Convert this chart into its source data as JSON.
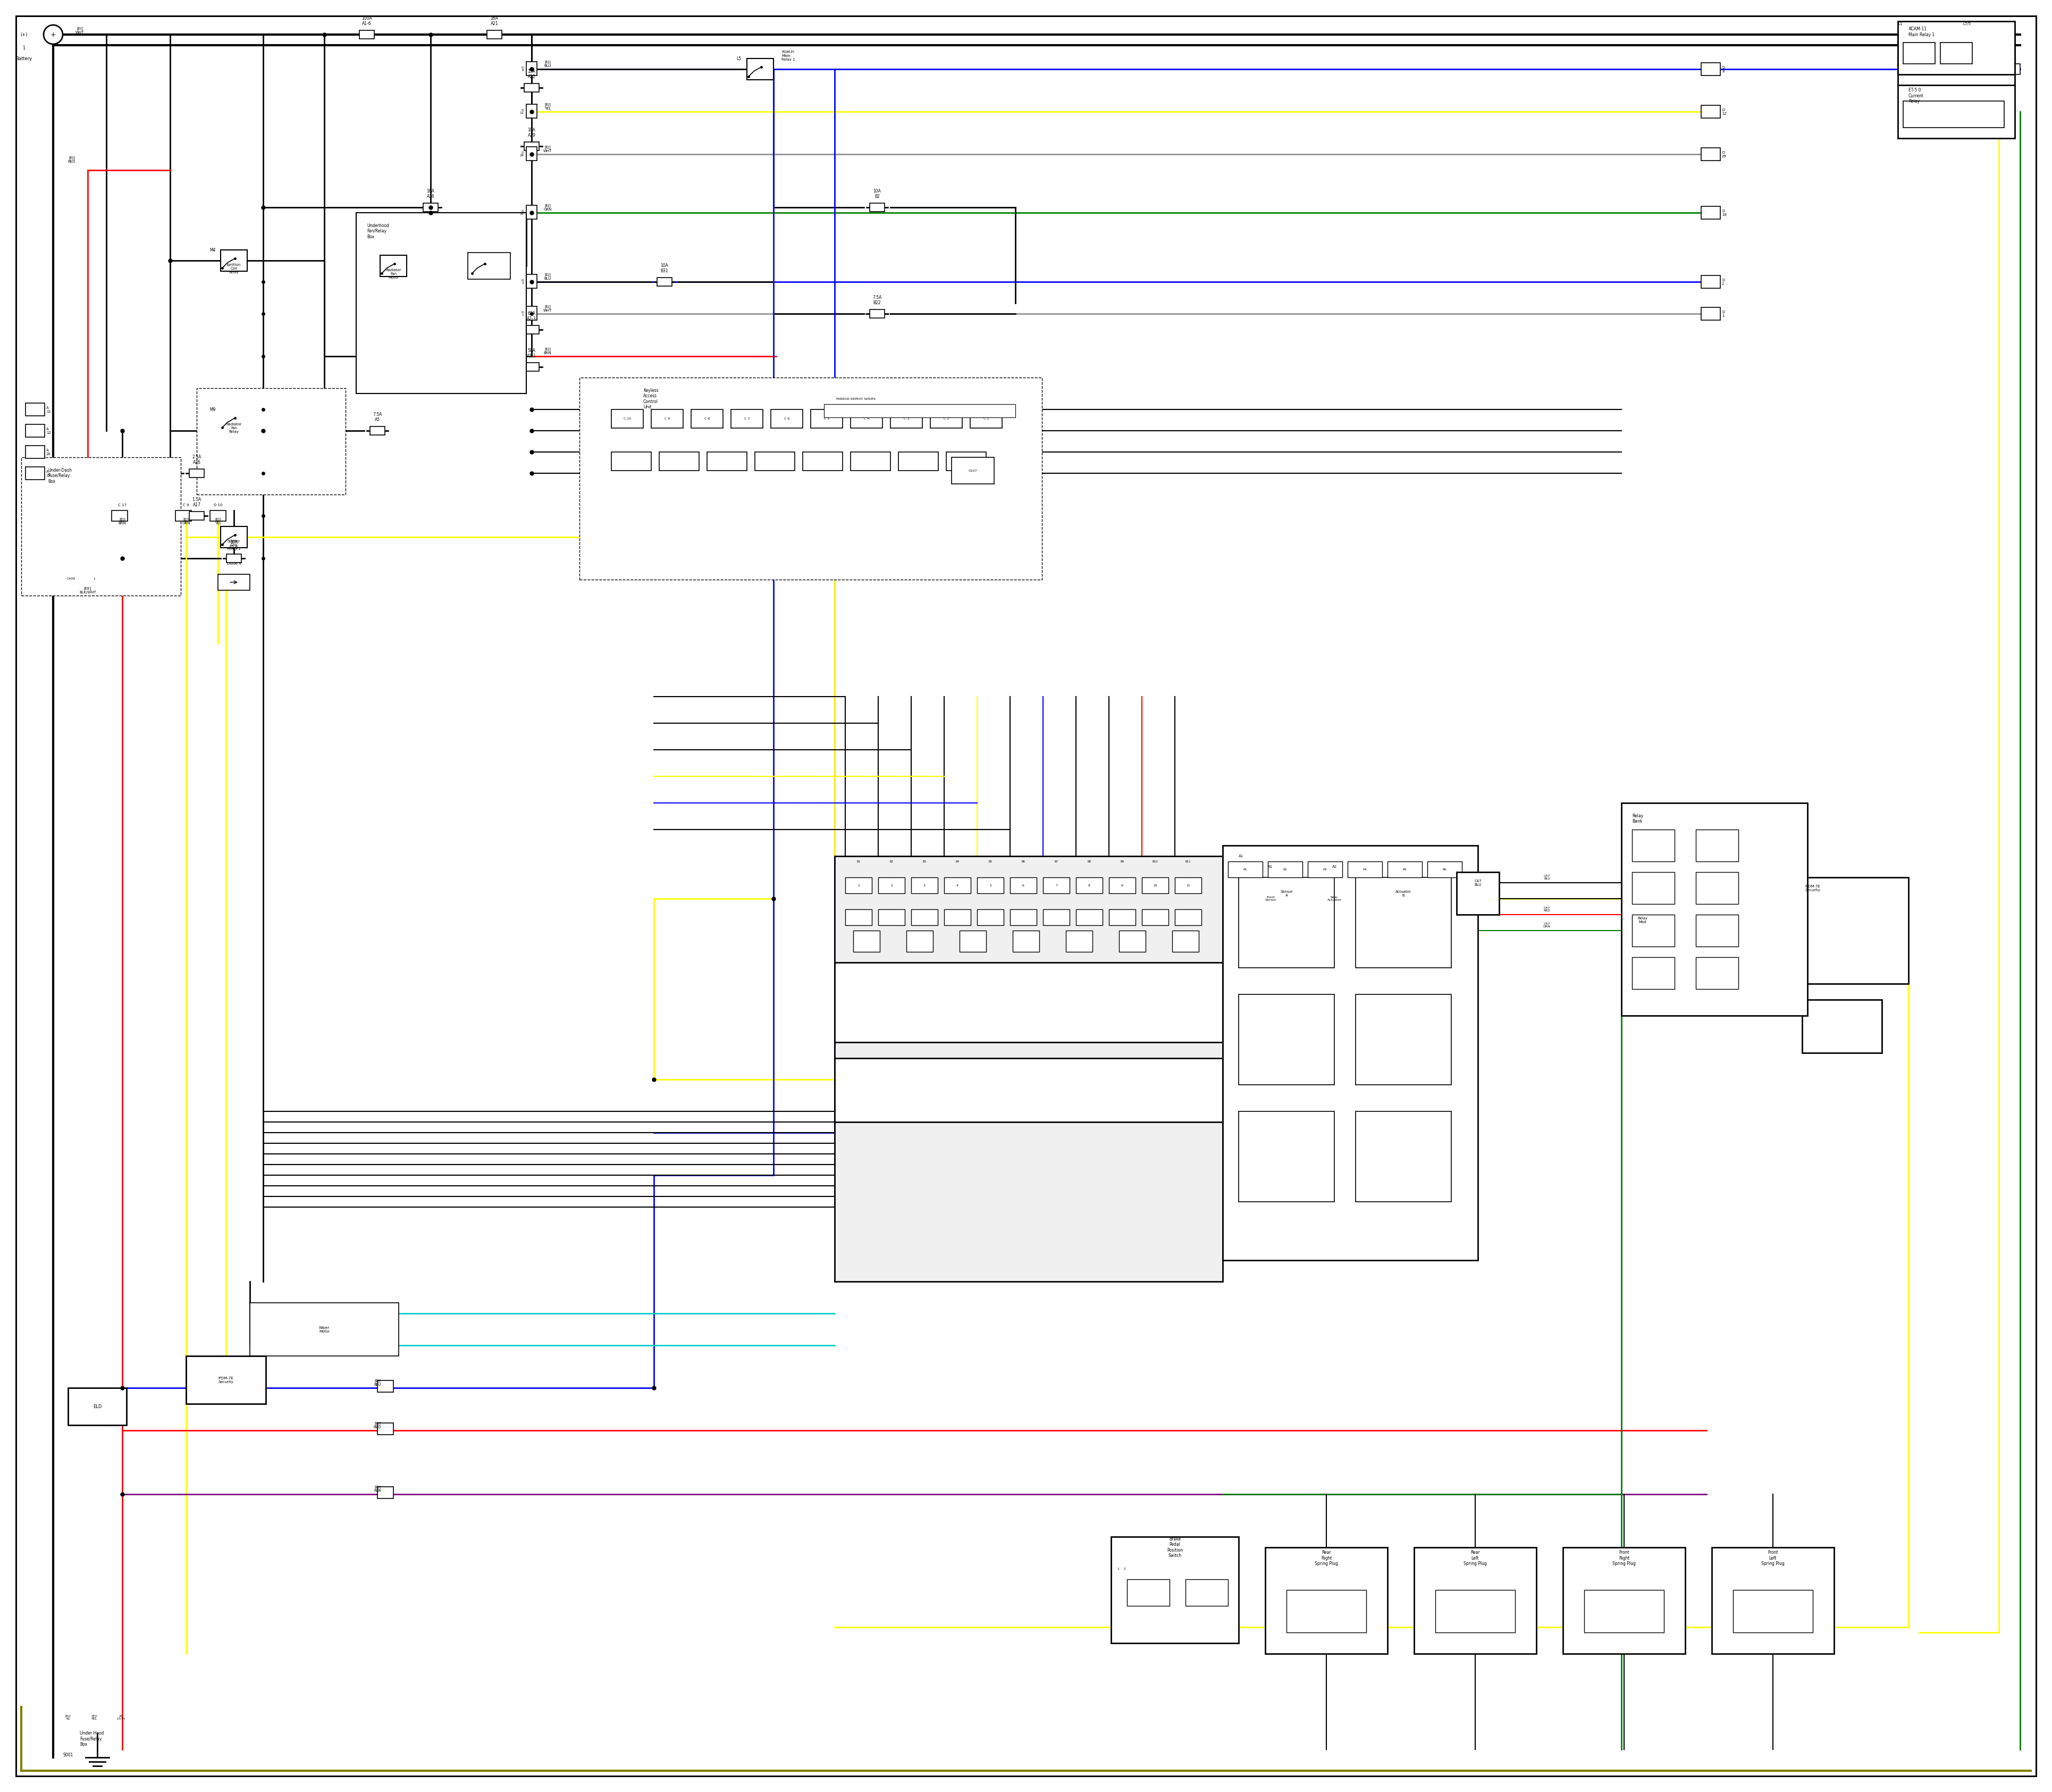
{
  "bg_color": "#ffffff",
  "lc": {
    "blk": "#000000",
    "red": "#ff0000",
    "blu": "#0000ff",
    "yel": "#ffff00",
    "grn": "#008000",
    "dkyel": "#808000",
    "cyn": "#00cccc",
    "pur": "#800080",
    "gry": "#909090",
    "lgry": "#c0c0c0",
    "brn": "#8B4513",
    "orn": "#ff8800"
  }
}
